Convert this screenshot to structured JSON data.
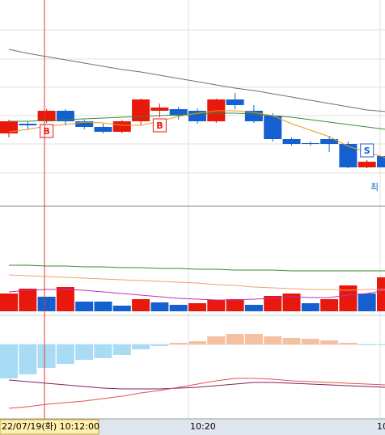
{
  "chart_data": {
    "type": "candlestick",
    "up_color": "#e8180c",
    "down_color": "#1560d0",
    "ylim": [
      45,
      300
    ],
    "open": [
      135,
      147,
      150,
      163,
      150,
      143,
      137,
      150,
      163,
      165,
      163,
      150,
      177,
      163,
      157,
      128,
      123,
      128,
      122,
      93,
      107
    ],
    "close": [
      150,
      145,
      163,
      150,
      143,
      137,
      150,
      177,
      167,
      157,
      150,
      177,
      170,
      150,
      128,
      122,
      122,
      122,
      93,
      100,
      93
    ],
    "high": [
      152,
      150,
      165,
      165,
      152,
      147,
      152,
      178,
      172,
      168,
      166,
      178,
      185,
      170,
      160,
      130,
      125,
      132,
      125,
      102,
      110
    ],
    "low": [
      130,
      140,
      148,
      145,
      140,
      135,
      135,
      145,
      155,
      152,
      147,
      148,
      165,
      148,
      125,
      120,
      120,
      112,
      92,
      92,
      92
    ],
    "signals": [
      null,
      null,
      "B",
      null,
      null,
      null,
      null,
      null,
      "B",
      null,
      null,
      null,
      null,
      null,
      null,
      null,
      null,
      null,
      null,
      "S",
      null
    ],
    "annotation": "최",
    "price_lines": [
      {
        "color": "#707070",
        "values": [
          239,
          234,
          230,
          226,
          222,
          218,
          214,
          211,
          207,
          203,
          199,
          195,
          191,
          188,
          184,
          180,
          176,
          172,
          168,
          164,
          162
        ]
      },
      {
        "color": "#3a8a3a",
        "values": [
          150,
          150,
          151,
          152,
          153,
          154,
          155,
          156,
          157,
          158,
          159,
          160,
          160,
          159,
          157,
          155,
          152,
          149,
          146,
          143,
          140
        ]
      },
      {
        "color": "#e89a20",
        "values": [
          137,
          140,
          144,
          146,
          149,
          148,
          145,
          145,
          150,
          156,
          160,
          163,
          163,
          161,
          157,
          147,
          139,
          131,
          119,
          112,
          105
        ]
      }
    ],
    "volume": {
      "ylim": [
        0,
        130
      ],
      "values": [
        22,
        28,
        18,
        30,
        12,
        12,
        7,
        15,
        11,
        8,
        10,
        14,
        15,
        8,
        19,
        22,
        10,
        15,
        32,
        22,
        42
      ],
      "colors": [
        "#e8180c",
        "#e8180c",
        "#1560d0",
        "#e8180c",
        "#1560d0",
        "#1560d0",
        "#1560d0",
        "#e8180c",
        "#1560d0",
        "#1560d0",
        "#e8180c",
        "#e8180c",
        "#e8180c",
        "#1560d0",
        "#e8180c",
        "#e8180c",
        "#1560d0",
        "#e8180c",
        "#e8180c",
        "#1560d0",
        "#e8180c"
      ],
      "lines": [
        {
          "color": "#3a8a3a",
          "values": [
            57,
            57,
            56,
            56,
            55,
            55,
            54,
            54,
            53,
            53,
            52,
            52,
            51,
            51,
            51,
            50,
            50,
            50,
            50,
            50,
            50
          ]
        },
        {
          "color": "#f0a070",
          "values": [
            45,
            44,
            43,
            42,
            41,
            40,
            39,
            38,
            37,
            36,
            35,
            33,
            32,
            30,
            29,
            28,
            27,
            27,
            26,
            27,
            27
          ]
        },
        {
          "color": "#c030c0",
          "values": [
            24,
            26,
            27,
            27,
            26,
            24,
            22,
            20,
            18,
            16,
            15,
            14,
            14,
            15,
            16,
            18,
            17,
            17,
            20,
            22,
            26
          ]
        }
      ]
    },
    "oscillator": {
      "ylim": [
        -92,
        36
      ],
      "values": [
        -42,
        -37,
        -29,
        -24,
        -19,
        -17,
        -13,
        -6,
        -2,
        2,
        4,
        10,
        13,
        13,
        10,
        8,
        7,
        5,
        2,
        -1,
        -1
      ],
      "pos_color": "#f5c0a0",
      "neg_color": "#a8dcf4",
      "lines": [
        {
          "color": "#802060",
          "values": [
            -44,
            -46,
            -48,
            -50,
            -52,
            -54,
            -55,
            -55,
            -55,
            -54,
            -53,
            -51,
            -49,
            -47,
            -47,
            -48,
            -49,
            -50,
            -51,
            -52,
            -53
          ]
        },
        {
          "color": "#e85050",
          "values": [
            -79,
            -77,
            -74,
            -72,
            -70,
            -67,
            -64,
            -60,
            -57,
            -53,
            -49,
            -45,
            -42,
            -42,
            -43,
            -45,
            -46,
            -47,
            -48,
            -49,
            -50
          ]
        }
      ]
    },
    "crosshair_label": "22/07/19(화) 10:12:00",
    "x_labels": [
      "10:20",
      "10"
    ]
  }
}
